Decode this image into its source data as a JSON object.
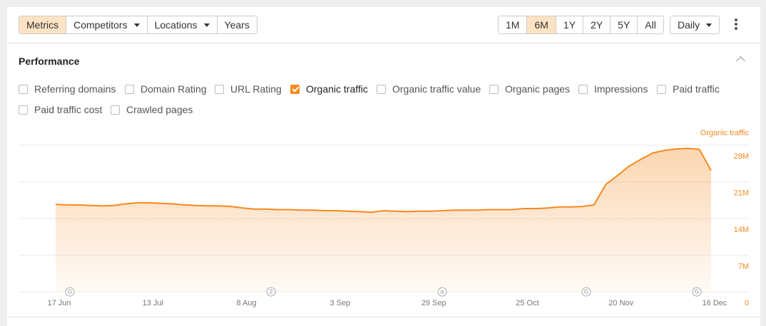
{
  "toolbar": {
    "tabs": [
      "Metrics",
      "Competitors",
      "Locations",
      "Years"
    ],
    "ranges": [
      "1M",
      "6M",
      "1Y",
      "2Y",
      "5Y",
      "All"
    ],
    "interval": "Daily"
  },
  "section_title": "Performance",
  "metrics": [
    {
      "label": "Referring domains",
      "checked": false
    },
    {
      "label": "Domain Rating",
      "checked": false
    },
    {
      "label": "URL Rating",
      "checked": false
    },
    {
      "label": "Organic traffic",
      "checked": true
    },
    {
      "label": "Organic traffic value",
      "checked": false
    },
    {
      "label": "Organic pages",
      "checked": false
    },
    {
      "label": "Impressions",
      "checked": false
    },
    {
      "label": "Paid traffic",
      "checked": false
    },
    {
      "label": "Paid traffic cost",
      "checked": false
    },
    {
      "label": "Crawled pages",
      "checked": false
    }
  ],
  "chart_data": {
    "type": "area",
    "categories": [
      "17 Jun",
      null,
      null,
      null,
      null,
      null,
      null,
      null,
      "13 Jul",
      null,
      null,
      null,
      null,
      null,
      null,
      null,
      "8 Aug",
      null,
      null,
      null,
      null,
      null,
      null,
      null,
      "3 Sep",
      null,
      null,
      null,
      null,
      null,
      null,
      null,
      "29 Sep",
      null,
      null,
      null,
      null,
      null,
      null,
      null,
      "25 Oct",
      null,
      null,
      null,
      null,
      null,
      null,
      null,
      "20 Nov",
      null,
      null,
      null,
      null,
      null,
      null,
      null,
      "16 Dec"
    ],
    "series": [
      {
        "name": "Organic traffic",
        "color": "#f7891f",
        "values": [
          16700000,
          16600000,
          16600000,
          16500000,
          16400000,
          16500000,
          16800000,
          17000000,
          17000000,
          16900000,
          16800000,
          16600000,
          16500000,
          16400000,
          16400000,
          16300000,
          16000000,
          15800000,
          15800000,
          15700000,
          15700000,
          15600000,
          15600000,
          15500000,
          15500000,
          15400000,
          15300000,
          15200000,
          15500000,
          15400000,
          15300000,
          15400000,
          15400000,
          15500000,
          15600000,
          15600000,
          15600000,
          15700000,
          15700000,
          15700000,
          15900000,
          15900000,
          16000000,
          16200000,
          16200000,
          16300000,
          16600000,
          20500000,
          22200000,
          24000000,
          25300000,
          26500000,
          27000000,
          27300000,
          27400000,
          27200000,
          23200000
        ]
      }
    ],
    "ylim": [
      0,
      28000000
    ],
    "yticks": [
      0,
      {
        "value": 7000000,
        "label": "7M"
      },
      {
        "value": 14000000,
        "label": "14M"
      },
      {
        "value": 21000000,
        "label": "21M"
      },
      {
        "value": 28000000,
        "label": "28M"
      }
    ],
    "grid": true,
    "annotations": [
      "G",
      "2",
      "a",
      "G",
      "G"
    ]
  }
}
